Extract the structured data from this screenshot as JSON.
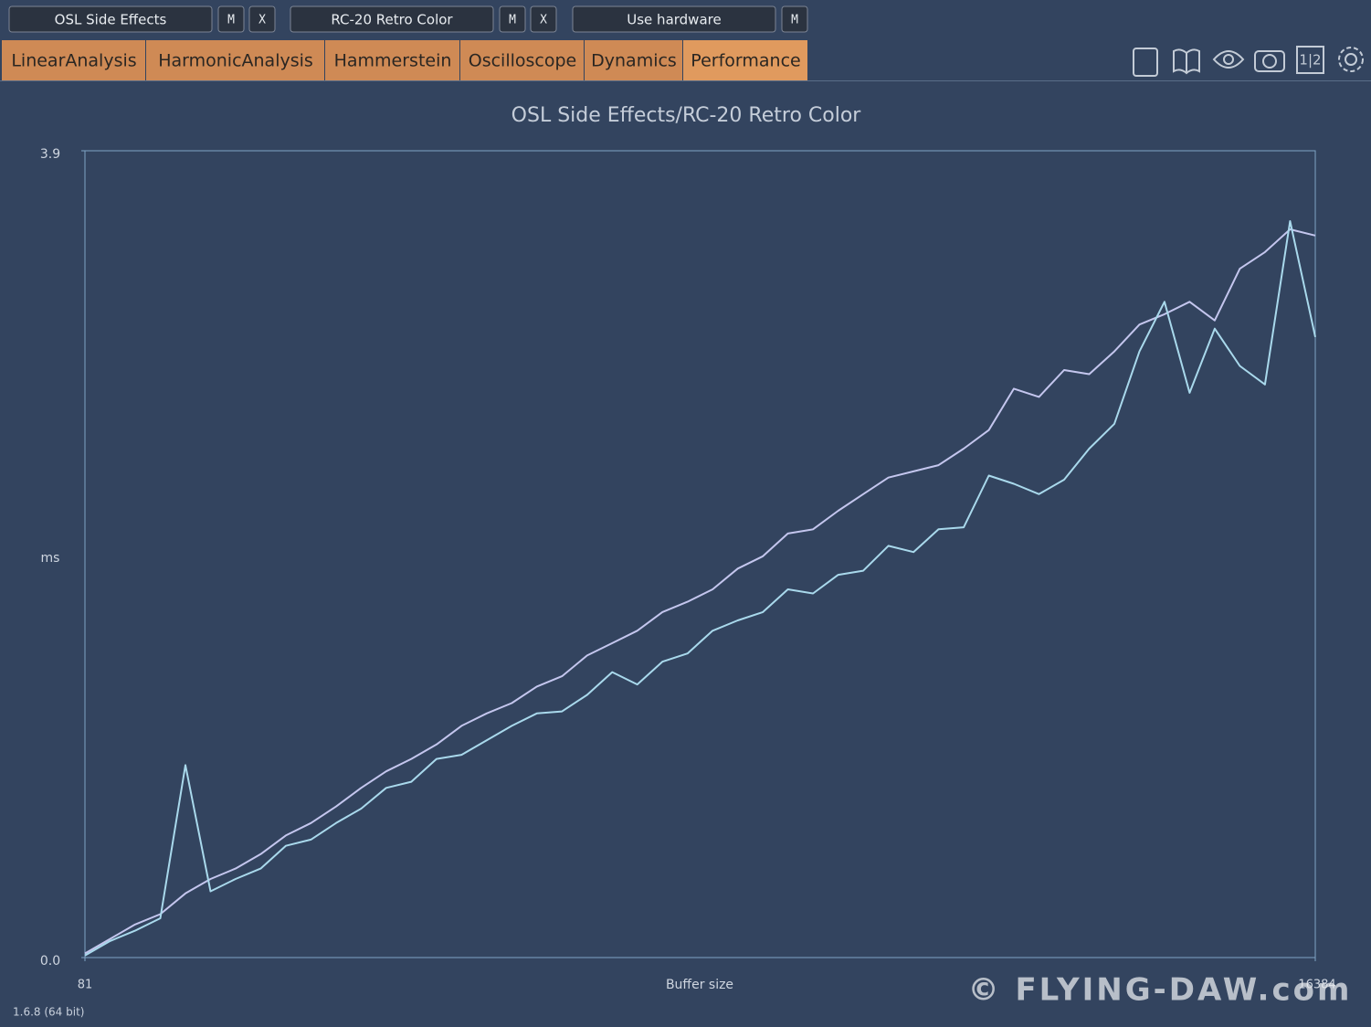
{
  "toolbar": {
    "slots": [
      {
        "label": "OSL Side Effects",
        "buttons": [
          "M",
          "X"
        ]
      },
      {
        "label": "RC-20 Retro Color",
        "buttons": [
          "M",
          "X"
        ]
      },
      {
        "label": "Use hardware",
        "buttons": [
          "M"
        ]
      }
    ]
  },
  "tabs": [
    "LinearAnalysis",
    "HarmonicAnalysis",
    "Hammerstein",
    "Oscilloscope",
    "Dynamics",
    "Performance"
  ],
  "active_tab": 5,
  "compare_icon": "1|2",
  "chart_data": {
    "type": "line",
    "title": "OSL Side Effects/RC-20 Retro Color",
    "x_label": "Buffer size",
    "y_label": "ms",
    "xlim": [
      81,
      16384
    ],
    "xticks": [
      81,
      16384
    ],
    "ylim": [
      0,
      3.9
    ],
    "yticks": [
      {
        "value": 0,
        "label": "0.0"
      },
      3.9
    ],
    "x": [
      81,
      414,
      746,
      1079,
      1412,
      1745,
      2077,
      2410,
      2743,
      3075,
      3408,
      3741,
      4073,
      4406,
      4739,
      5071,
      5404,
      5737,
      6069,
      6402,
      6735,
      7068,
      7400,
      7733,
      8066,
      8398,
      8731,
      9064,
      9396,
      9729,
      10062,
      10394,
      10727,
      11060,
      11392,
      11725,
      12058,
      12390,
      12723,
      13056,
      13388,
      13721,
      14054,
      14386,
      14719,
      15052,
      15384,
      15717,
      16050,
      16384
    ],
    "series": [
      {
        "color": "#c4c6ee",
        "values": [
          0.02,
          0.09,
          0.16,
          0.21,
          0.31,
          0.38,
          0.43,
          0.5,
          0.59,
          0.65,
          0.73,
          0.82,
          0.9,
          0.96,
          1.03,
          1.12,
          1.18,
          1.23,
          1.31,
          1.36,
          1.46,
          1.52,
          1.58,
          1.67,
          1.72,
          1.78,
          1.88,
          1.94,
          2.05,
          2.07,
          2.16,
          2.24,
          2.32,
          2.35,
          2.38,
          2.46,
          2.55,
          2.75,
          2.71,
          2.84,
          2.82,
          2.93,
          3.06,
          3.11,
          3.17,
          3.08,
          3.33,
          3.41,
          3.52,
          3.49
        ]
      },
      {
        "color": "#a9d9ec",
        "values": [
          0.01,
          0.08,
          0.13,
          0.19,
          0.93,
          0.32,
          0.38,
          0.43,
          0.54,
          0.57,
          0.65,
          0.72,
          0.82,
          0.85,
          0.96,
          0.98,
          1.05,
          1.12,
          1.18,
          1.19,
          1.27,
          1.38,
          1.32,
          1.43,
          1.47,
          1.58,
          1.63,
          1.67,
          1.78,
          1.76,
          1.85,
          1.87,
          1.99,
          1.96,
          2.07,
          2.08,
          2.33,
          2.29,
          2.24,
          2.31,
          2.46,
          2.58,
          2.93,
          3.17,
          2.73,
          3.04,
          2.86,
          2.77,
          3.56,
          3.0
        ]
      }
    ]
  },
  "footer": {
    "version": "1.6.8 (64 bit)",
    "watermark": "© FLYING-DAW.com"
  }
}
